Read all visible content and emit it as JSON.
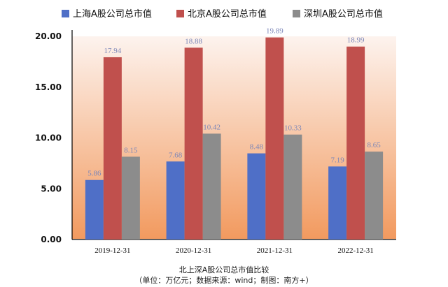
{
  "chart_data": {
    "type": "bar",
    "categories": [
      "2019-12-31",
      "2020-12-31",
      "2021-12-31",
      "2022-12-31"
    ],
    "series": [
      {
        "name": "上海A股公司总市值",
        "values": [
          5.86,
          7.68,
          8.48,
          7.19
        ],
        "color": "#4f6fc7"
      },
      {
        "name": "北京A股公司总市值",
        "values": [
          17.94,
          18.88,
          19.89,
          18.99
        ],
        "color": "#c0504d"
      },
      {
        "name": "深圳A股公司总市值",
        "values": [
          8.15,
          10.42,
          10.33,
          8.65
        ],
        "color": "#8c8c8c"
      }
    ],
    "ylim": [
      0,
      20
    ],
    "yticks": [
      "0.00",
      "5.00",
      "10.00",
      "15.00",
      "20.00"
    ],
    "grid": false,
    "legend_position": "top"
  },
  "caption": {
    "title": "北上深A股公司总市值比较",
    "note": "（单位：万亿元；数据来源：wind；制图：南方+）"
  },
  "colors": {
    "bg_top": "#fdf3ee",
    "bg_bottom": "#f29a5f",
    "value_label": "#7b86b8"
  }
}
